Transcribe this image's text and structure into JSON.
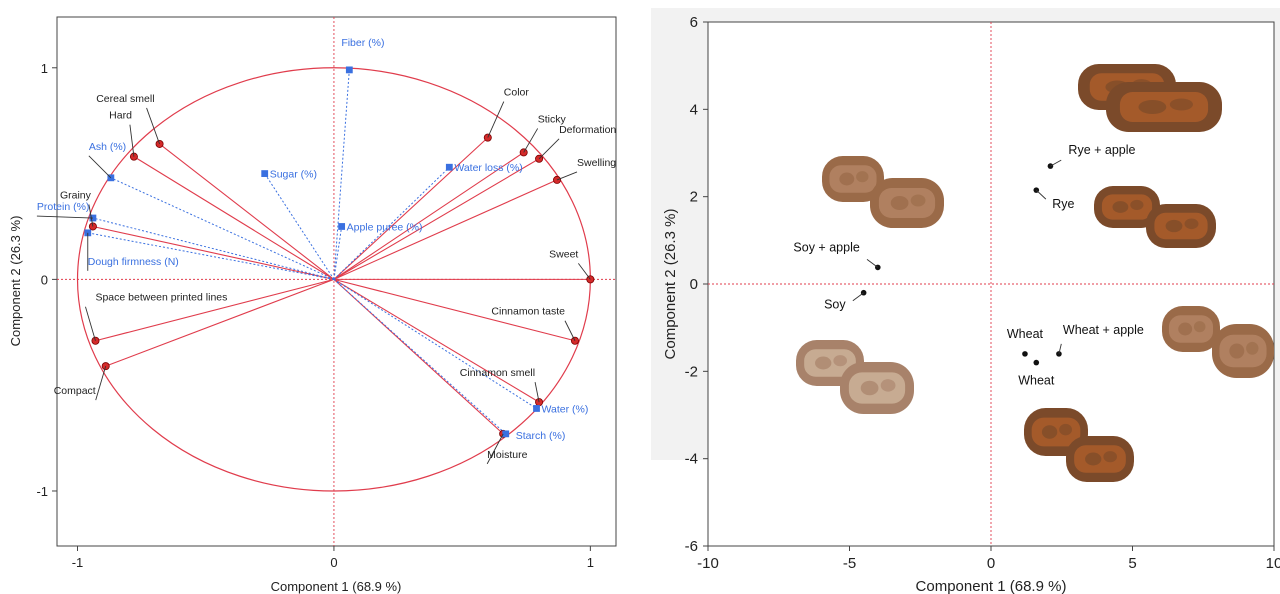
{
  "chart_data": [
    {
      "type": "scatter",
      "subtype": "pca-loadings-plot",
      "xlabel": "Component 1  (68.9 %)",
      "ylabel": "Component 2  (26.3 %)",
      "xlim": [
        -1.08,
        1.1
      ],
      "ylim": [
        -1.26,
        1.24
      ],
      "xticks": [
        "-1",
        "0",
        "1"
      ],
      "yticks": [
        "-1",
        "0",
        "1"
      ],
      "unit_circle": true,
      "colors": {
        "sensory": "#cc2222",
        "instrumental": "#3a70e0",
        "circle": "#e03c4c",
        "label_sensory": "#222222",
        "label_instrumental": "#3a70e0"
      },
      "series": [
        {
          "group": "sensory",
          "points": [
            {
              "label": "Cereal smell",
              "x": -0.68,
              "y": 0.64
            },
            {
              "label": "Hard",
              "x": -0.78,
              "y": 0.58
            },
            {
              "label": "Grainy",
              "x": -0.94,
              "y": 0.25
            },
            {
              "label": "Space between printed lines",
              "x": -0.93,
              "y": -0.29
            },
            {
              "label": "Compact",
              "x": -0.89,
              "y": -0.41
            },
            {
              "label": "Color",
              "x": 0.6,
              "y": 0.67
            },
            {
              "label": "Sticky",
              "x": 0.74,
              "y": 0.6
            },
            {
              "label": "Deformation",
              "x": 0.8,
              "y": 0.57
            },
            {
              "label": "Swelling",
              "x": 0.87,
              "y": 0.47
            },
            {
              "label": "Sweet",
              "x": 1.0,
              "y": 0.0
            },
            {
              "label": "Cinnamon taste",
              "x": 0.94,
              "y": -0.29
            },
            {
              "label": "Cinnamon smell",
              "x": 0.8,
              "y": -0.58
            },
            {
              "label": "Moisture",
              "x": 0.66,
              "y": -0.73
            }
          ]
        },
        {
          "group": "instrumental",
          "points": [
            {
              "label": "Fiber (%)",
              "x": 0.06,
              "y": 0.99
            },
            {
              "label": "Sugar (%)",
              "x": -0.27,
              "y": 0.5
            },
            {
              "label": "Ash (%)",
              "x": -0.87,
              "y": 0.48
            },
            {
              "label": "Protein (%)",
              "x": -0.94,
              "y": 0.29
            },
            {
              "label": "Dough firmness (N)",
              "x": -0.96,
              "y": 0.22
            },
            {
              "label": "Water loss (%)",
              "x": 0.45,
              "y": 0.53
            },
            {
              "label": "Apple puree (%)",
              "x": 0.03,
              "y": 0.25
            },
            {
              "label": "Water (%)",
              "x": 0.79,
              "y": -0.61
            },
            {
              "label": "Starch (%)",
              "x": 0.67,
              "y": -0.73
            }
          ]
        }
      ]
    },
    {
      "type": "scatter",
      "subtype": "pca-scores-plot",
      "xlabel": "Component 1  (68.9 %)",
      "ylabel": "Component 2  (26.3 %)",
      "xlim": [
        -10,
        10
      ],
      "ylim": [
        -6,
        6
      ],
      "xticks": [
        "-10",
        "-5",
        "0",
        "5",
        "10"
      ],
      "yticks": [
        "-6",
        "-4",
        "-2",
        "0",
        "2",
        "4",
        "6"
      ],
      "points": [
        {
          "label": "Rye + apple",
          "x": 2.1,
          "y": 2.7
        },
        {
          "label": "Rye",
          "x": 1.6,
          "y": 2.15
        },
        {
          "label": "Soy + apple",
          "x": -4.0,
          "y": 0.38
        },
        {
          "label": "Soy",
          "x": -4.5,
          "y": -0.2
        },
        {
          "label": "Wheat",
          "x": 1.2,
          "y": -1.6
        },
        {
          "label": "Wheat",
          "x": 1.6,
          "y": -1.8
        },
        {
          "label": "Wheat + apple",
          "x": 2.4,
          "y": -1.6
        }
      ],
      "photos": [
        {
          "name": "rye-apple-samples-photo"
        },
        {
          "name": "rye-samples-photo"
        },
        {
          "name": "soy-apple-samples-photo"
        },
        {
          "name": "soy-samples-photo"
        },
        {
          "name": "wheat-apple-samples-photo"
        },
        {
          "name": "wheat-samples-photo"
        }
      ]
    }
  ]
}
